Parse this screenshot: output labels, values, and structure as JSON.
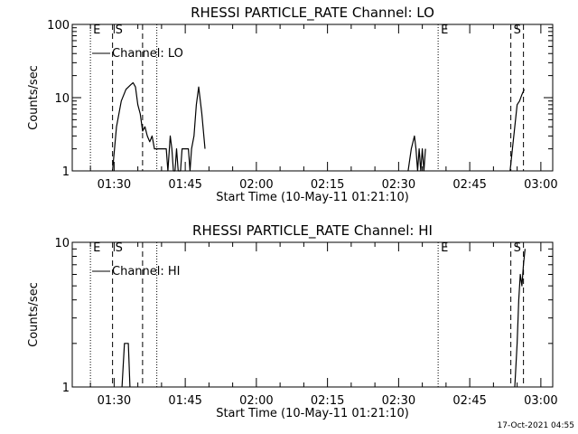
{
  "timestamp": "17-Oct-2021 04:55",
  "chart_data": [
    {
      "type": "line",
      "title": "RHESSI PARTICLE_RATE Channel: LO",
      "xlabel": "Start Time (10-May-11 01:21:10)",
      "ylabel": "Counts/sec",
      "yscale": "log",
      "xlim": [
        "01:21:10",
        "03:02:30"
      ],
      "ylim": [
        1,
        100
      ],
      "x_ticks": [
        "01:30",
        "01:45",
        "02:00",
        "02:15",
        "02:30",
        "02:45",
        "03:00"
      ],
      "y_ticks": [
        "1",
        "10",
        "100"
      ],
      "legend": {
        "position": "top-left",
        "entries": [
          "Channel: LO"
        ]
      },
      "markers": [
        {
          "time": "01:25:00",
          "style": "dotted",
          "label": "E"
        },
        {
          "time": "01:29:40",
          "style": "dashed",
          "label": "S"
        },
        {
          "time": "01:36:00",
          "style": "dashed",
          "label": ""
        },
        {
          "time": "01:39:00",
          "style": "dotted",
          "label": ""
        },
        {
          "time": "02:38:20",
          "style": "dotted",
          "label": "E"
        },
        {
          "time": "02:53:40",
          "style": "dashed",
          "label": "S"
        },
        {
          "time": "02:56:20",
          "style": "dashed",
          "label": ""
        }
      ],
      "series": [
        {
          "name": "Channel: LO",
          "segments": [
            {
              "x": [
                "01:29:40",
                "01:30:30",
                "01:31:30",
                "01:32:30",
                "01:33:30",
                "01:34:00",
                "01:34:30",
                "01:35:00",
                "01:35:30",
                "01:36:00",
                "01:36:30",
                "01:37:00",
                "01:37:30",
                "01:38:00",
                "01:38:30",
                "01:38:50",
                "01:39:30",
                "01:40:00",
                "01:40:20",
                "01:40:40",
                "01:41:00",
                "01:41:20",
                "01:41:50",
                "01:42:10",
                "01:42:30",
                "01:42:50",
                "01:43:10",
                "01:43:30",
                "01:44:00",
                "01:44:20",
                "01:45:00",
                "01:45:20",
                "01:45:40",
                "01:46:00",
                "01:46:20",
                "01:46:50",
                "01:47:20",
                "01:47:50",
                "01:48:30",
                "01:49:10"
              ],
              "y": [
                1,
                4,
                9,
                13,
                15,
                16,
                14,
                8,
                6,
                3.5,
                4,
                3,
                2.5,
                3,
                2,
                2,
                2,
                2,
                2,
                2,
                2,
                1,
                3,
                2,
                1,
                1,
                2,
                1,
                1,
                2,
                2,
                2,
                2,
                1,
                2,
                3,
                8,
                14,
                6,
                2
              ]
            },
            {
              "x": [
                "02:32:00",
                "02:32:40",
                "02:33:20",
                "02:33:40",
                "02:34:00",
                "02:34:20",
                "02:34:40",
                "02:35:00",
                "02:35:20",
                "02:35:40"
              ],
              "y": [
                1,
                2,
                3,
                2,
                1,
                2,
                1,
                2,
                1,
                2
              ]
            },
            {
              "x": [
                "02:53:30",
                "02:54:00",
                "02:54:30",
                "02:55:00",
                "02:55:30",
                "02:56:00",
                "02:56:30"
              ],
              "y": [
                1,
                2,
                4,
                8,
                9,
                11,
                13
              ]
            }
          ]
        }
      ]
    },
    {
      "type": "line",
      "title": "RHESSI PARTICLE_RATE Channel: HI",
      "xlabel": "Start Time (10-May-11 01:21:10)",
      "ylabel": "Counts/sec",
      "yscale": "log",
      "xlim": [
        "01:21:10",
        "03:02:30"
      ],
      "ylim": [
        1,
        10
      ],
      "x_ticks": [
        "01:30",
        "01:45",
        "02:00",
        "02:15",
        "02:30",
        "02:45",
        "03:00"
      ],
      "y_ticks": [
        "1",
        "10"
      ],
      "legend": {
        "position": "top-left",
        "entries": [
          "Channel: HI"
        ]
      },
      "markers": [
        {
          "time": "01:25:00",
          "style": "dotted",
          "label": "E"
        },
        {
          "time": "01:29:40",
          "style": "dashed",
          "label": "S"
        },
        {
          "time": "01:36:00",
          "style": "dashed",
          "label": ""
        },
        {
          "time": "01:39:00",
          "style": "dotted",
          "label": ""
        },
        {
          "time": "02:38:20",
          "style": "dotted",
          "label": "E"
        },
        {
          "time": "02:53:40",
          "style": "dashed",
          "label": "S"
        },
        {
          "time": "02:56:20",
          "style": "dashed",
          "label": ""
        }
      ],
      "series": [
        {
          "name": "Channel: HI",
          "segments": [
            {
              "x": [
                "01:31:40",
                "01:32:10",
                "01:32:40",
                "01:33:00",
                "01:33:20"
              ],
              "y": [
                1,
                2,
                2,
                2,
                1
              ]
            },
            {
              "x": [
                "02:54:30",
                "02:55:00",
                "02:55:20",
                "02:55:40",
                "02:56:00",
                "02:56:20",
                "02:56:40"
              ],
              "y": [
                1,
                2,
                4,
                6,
                5,
                7,
                9
              ]
            }
          ]
        }
      ]
    }
  ]
}
